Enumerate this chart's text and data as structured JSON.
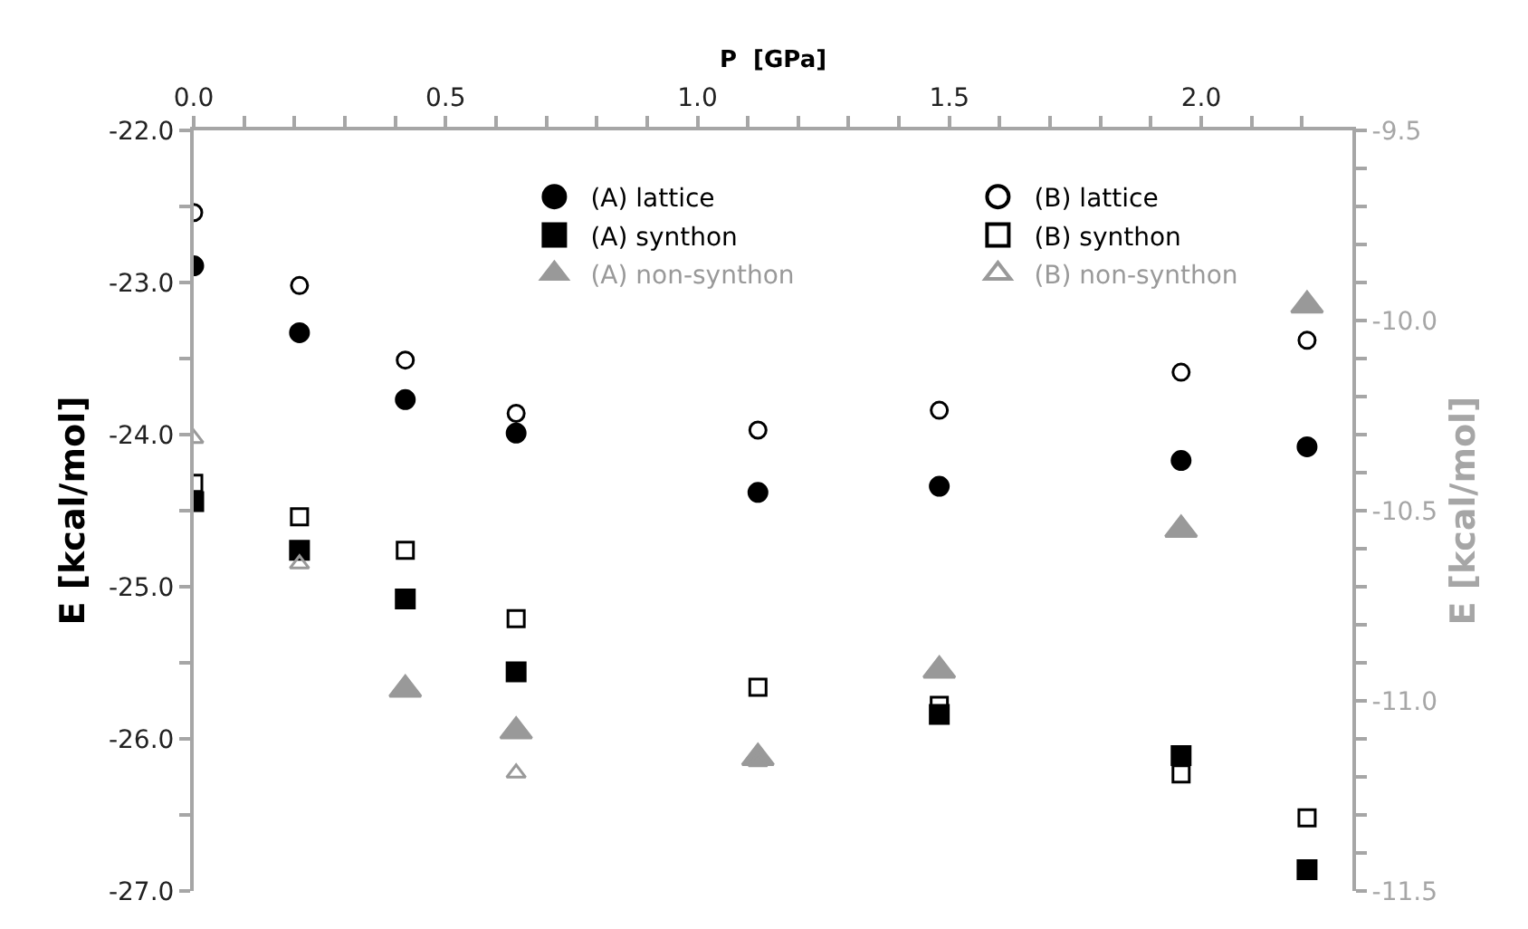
{
  "chart_data": {
    "type": "scatter",
    "xlabel": "P  [GPa]",
    "ylabel": "E [kcal/mol]",
    "y2label": "E [kcal/mol]",
    "x": [
      0.0,
      0.21,
      0.42,
      0.64,
      1.12,
      1.48,
      1.96,
      2.21
    ],
    "series": [
      {
        "name": "(A) lattice",
        "color": "#000000",
        "marker": "circle",
        "values": [
          -22.89,
          -23.33,
          -23.77,
          -23.99,
          -24.38,
          -24.34,
          -24.17,
          -24.08
        ]
      },
      {
        "name": "(B) lattice",
        "color": "#000000",
        "marker": "circle",
        "values": [
          -22.54,
          -23.02,
          -23.51,
          -23.86,
          -23.97,
          -23.84,
          -23.59,
          -23.38
        ]
      },
      {
        "name": "(A) synthon",
        "color": "#000000",
        "marker": "square",
        "values": [
          -24.44,
          -24.76,
          -25.08,
          -25.56,
          null,
          -25.84,
          -26.11,
          -26.86
        ]
      },
      {
        "name": "(B) synthon",
        "color": "#000000",
        "marker": "square",
        "values": [
          -24.32,
          -24.54,
          -24.76,
          -25.21,
          -25.66,
          -25.78,
          -26.23,
          -26.52
        ]
      },
      {
        "name": "(A) non-synthon",
        "color": "#999999",
        "marker": "triangle",
        "axis": "y2",
        "values": [
          null,
          null,
          -10.97,
          -11.08,
          -11.15,
          -10.92,
          -10.55,
          -9.96
        ]
      },
      {
        "name": "(B) non-synthon",
        "color": "#999999",
        "marker": "triangle",
        "axis": "y2",
        "values": [
          -10.31,
          -10.64,
          null,
          -11.19,
          -11.16,
          null,
          null,
          null
        ]
      }
    ],
    "xlim": [
      0,
      2.3
    ],
    "xticks": [
      {
        "value": 0,
        "label": "0.0"
      },
      {
        "value": 0.1,
        "label": null
      },
      {
        "value": 0.2,
        "label": null
      },
      {
        "value": 0.3,
        "label": null
      },
      {
        "value": 0.4,
        "label": null
      },
      0.5,
      {
        "value": 0.6,
        "label": null
      },
      {
        "value": 0.7,
        "label": null
      },
      {
        "value": 0.8,
        "label": null
      },
      {
        "value": 0.9,
        "label": null
      },
      {
        "value": 1,
        "label": "1.0"
      },
      {
        "value": 1.1,
        "label": null
      },
      {
        "value": 1.2,
        "label": null
      },
      {
        "value": 1.3,
        "label": null
      },
      {
        "value": 1.4,
        "label": null
      },
      1.5,
      {
        "value": 1.6,
        "label": null
      },
      {
        "value": 1.7,
        "label": null
      },
      {
        "value": 1.8,
        "label": null
      },
      {
        "value": 1.9,
        "label": null
      },
      {
        "value": 2,
        "label": "2.0"
      },
      {
        "value": 2.1,
        "label": null
      },
      {
        "value": 2.2,
        "label": null
      }
    ],
    "ylim": [
      -27,
      -22
    ],
    "yticks": [
      {
        "value": -27,
        "label": "-27.0"
      },
      {
        "value": -26.5,
        "label": null
      },
      {
        "value": -26,
        "label": "-26.0"
      },
      {
        "value": -25.5,
        "label": null
      },
      {
        "value": -25,
        "label": "-25.0"
      },
      {
        "value": -24.5,
        "label": null
      },
      {
        "value": -24,
        "label": "-24.0"
      },
      {
        "value": -23.5,
        "label": null
      },
      {
        "value": -23,
        "label": "-23.0"
      },
      {
        "value": -22.5,
        "label": null
      },
      {
        "value": -22,
        "label": "-22.0"
      }
    ],
    "y2lim": [
      -11.5,
      -9.5
    ],
    "y2ticks": [
      -11.5,
      {
        "value": -11.4,
        "label": null
      },
      {
        "value": -11.3,
        "label": null
      },
      {
        "value": -11.2,
        "label": null
      },
      {
        "value": -11.1,
        "label": null
      },
      {
        "value": -11,
        "label": "-11.0"
      },
      {
        "value": -10.9,
        "label": null
      },
      {
        "value": -10.8,
        "label": null
      },
      {
        "value": -10.7,
        "label": null
      },
      {
        "value": -10.6,
        "label": null
      },
      -10.5,
      {
        "value": -10.4,
        "label": null
      },
      {
        "value": -10.3,
        "label": null
      },
      {
        "value": -10.2,
        "label": null
      },
      {
        "value": -10.1,
        "label": null
      },
      {
        "value": -10,
        "label": "-10.0"
      },
      {
        "value": -9.9,
        "label": null
      },
      {
        "value": -9.8,
        "label": null
      },
      {
        "value": -9.7,
        "label": null
      },
      {
        "value": -9.6,
        "label": null
      },
      -9.5
    ],
    "legend": "top"
  }
}
